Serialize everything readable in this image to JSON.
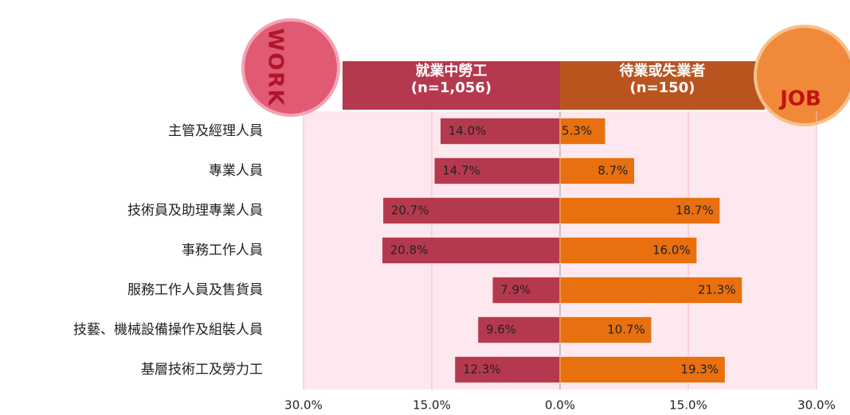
{
  "chart_data": {
    "type": "butterfly",
    "categories": [
      "主管及經理人員",
      "專業人員",
      "技術員及助理專業人員",
      "事務工作人員",
      "服務工作人員及售貨員",
      "技藝、機械設備操作及組裝人員",
      "基層技術工及勞力工"
    ],
    "series": [
      {
        "name": "就業中勞工\n(n=1,056)",
        "color": "#b5394e",
        "side": "left",
        "values": [
          14.0,
          14.7,
          20.7,
          20.8,
          7.9,
          9.6,
          12.3
        ],
        "value_labels": [
          "14.0%",
          "14.7%",
          "20.7%",
          "20.8%",
          "7.9%",
          "9.6%",
          "12.3%"
        ]
      },
      {
        "name": "待業或失業者\n(n=150)",
        "color": "#e8700f",
        "side": "right",
        "values": [
          5.3,
          8.7,
          18.7,
          16.0,
          21.3,
          10.7,
          19.3
        ],
        "value_labels": [
          "5.3%",
          "8.7%",
          "18.7%",
          "16.0%",
          "21.3%",
          "10.7%",
          "19.3%"
        ]
      }
    ],
    "header_colors": [
      "#b5394e",
      "#b9541f"
    ],
    "annotations": [
      "WORK",
      "JOB"
    ],
    "xlim": [
      -30,
      30
    ],
    "xticks": [
      {
        "value": -30,
        "label": "30.0%"
      },
      {
        "value": -15,
        "label": "15.0%"
      },
      {
        "value": 0,
        "label": "0.0%"
      },
      {
        "value": 15,
        "label": "15.0%"
      },
      {
        "value": 30,
        "label": "30.0%"
      }
    ],
    "grid": true
  }
}
